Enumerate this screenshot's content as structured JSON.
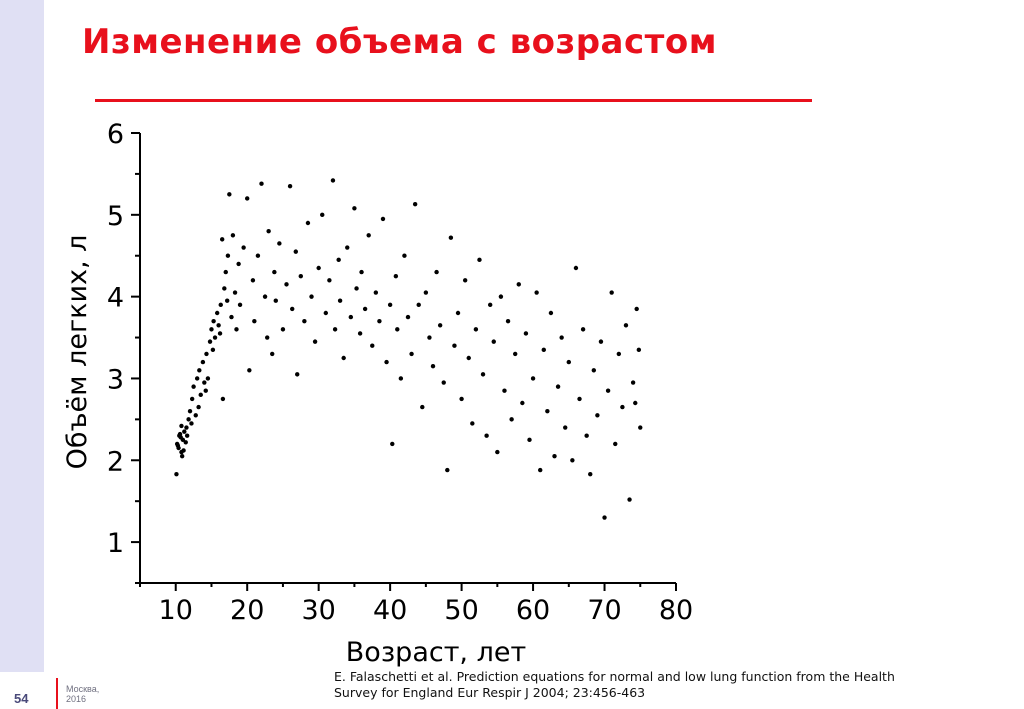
{
  "slide": {
    "title": "Изменение объема с возрастом",
    "citation": "E. Falaschetti et al. Prediction equations for normal and low lung function from the Health\nSurvey for England Eur Respir J 2004; 23:456-463",
    "slide_number": "54",
    "footer_city": "Москва,",
    "footer_year": "2016",
    "accent_color": "#e8101c",
    "sidebar_color": "#e0e0f4"
  },
  "chart_data": {
    "type": "scatter",
    "xlabel": "Возраст, лет",
    "ylabel": "Объём легких, л",
    "xlim": [
      5,
      80
    ],
    "ylim": [
      0.5,
      6
    ],
    "x_ticks": [
      10,
      20,
      30,
      40,
      50,
      60,
      70,
      80
    ],
    "y_ticks": [
      1,
      2,
      3,
      4,
      5,
      6
    ],
    "grid": false,
    "legend": "none",
    "marker_color": "#000000",
    "series": [
      {
        "points": [
          [
            10.2,
            2.2
          ],
          [
            10.5,
            2.3
          ],
          [
            10.8,
            2.1
          ],
          [
            11.0,
            2.25
          ],
          [
            10.4,
            2.15
          ],
          [
            11.2,
            2.35
          ],
          [
            10.9,
            2.05
          ],
          [
            10.1,
            1.83
          ],
          [
            11.5,
            2.4
          ],
          [
            10.7,
            2.28
          ],
          [
            10.3,
            2.18
          ],
          [
            11.4,
            2.22
          ],
          [
            10.6,
            2.32
          ],
          [
            11.1,
            2.12
          ],
          [
            10.8,
            2.42
          ],
          [
            11.8,
            2.5
          ],
          [
            12.0,
            2.6
          ],
          [
            11.6,
            2.3
          ],
          [
            12.3,
            2.75
          ],
          [
            12.5,
            2.9
          ],
          [
            12.8,
            2.55
          ],
          [
            13.0,
            3.0
          ],
          [
            12.2,
            2.45
          ],
          [
            13.3,
            3.1
          ],
          [
            13.5,
            2.8
          ],
          [
            13.8,
            3.2
          ],
          [
            14.0,
            2.95
          ],
          [
            13.2,
            2.65
          ],
          [
            14.3,
            3.3
          ],
          [
            14.5,
            3.0
          ],
          [
            14.8,
            3.45
          ],
          [
            15.0,
            3.6
          ],
          [
            14.2,
            2.85
          ],
          [
            15.3,
            3.7
          ],
          [
            15.5,
            3.5
          ],
          [
            15.8,
            3.8
          ],
          [
            16.0,
            3.65
          ],
          [
            15.2,
            3.35
          ],
          [
            16.3,
            3.9
          ],
          [
            16.5,
            4.7
          ],
          [
            16.8,
            4.1
          ],
          [
            17.0,
            4.3
          ],
          [
            16.2,
            3.55
          ],
          [
            17.3,
            4.5
          ],
          [
            17.5,
            5.25
          ],
          [
            17.8,
            3.75
          ],
          [
            18.0,
            4.75
          ],
          [
            16.6,
            2.75
          ],
          [
            17.2,
            3.95
          ],
          [
            18.3,
            4.05
          ],
          [
            18.5,
            3.6
          ],
          [
            18.8,
            4.4
          ],
          [
            19.0,
            3.9
          ],
          [
            19.5,
            4.6
          ],
          [
            20.0,
            5.2
          ],
          [
            20.3,
            3.1
          ],
          [
            20.8,
            4.2
          ],
          [
            21.0,
            3.7
          ],
          [
            21.5,
            4.5
          ],
          [
            22.0,
            5.38
          ],
          [
            22.5,
            4.0
          ],
          [
            22.8,
            3.5
          ],
          [
            23.0,
            4.8
          ],
          [
            23.5,
            3.3
          ],
          [
            23.8,
            4.3
          ],
          [
            24.0,
            3.95
          ],
          [
            24.5,
            4.65
          ],
          [
            25.0,
            3.6
          ],
          [
            25.5,
            4.15
          ],
          [
            26.0,
            5.35
          ],
          [
            26.3,
            3.85
          ],
          [
            26.8,
            4.55
          ],
          [
            27.0,
            3.05
          ],
          [
            27.5,
            4.25
          ],
          [
            28.0,
            3.7
          ],
          [
            28.5,
            4.9
          ],
          [
            29.0,
            4.0
          ],
          [
            29.5,
            3.45
          ],
          [
            30.0,
            4.35
          ],
          [
            30.5,
            5.0
          ],
          [
            31.0,
            3.8
          ],
          [
            31.5,
            4.2
          ],
          [
            32.0,
            5.42
          ],
          [
            32.3,
            3.6
          ],
          [
            32.8,
            4.45
          ],
          [
            33.0,
            3.95
          ],
          [
            33.5,
            3.25
          ],
          [
            34.0,
            4.6
          ],
          [
            34.5,
            3.75
          ],
          [
            35.0,
            5.08
          ],
          [
            35.3,
            4.1
          ],
          [
            35.8,
            3.55
          ],
          [
            36.0,
            4.3
          ],
          [
            36.5,
            3.85
          ],
          [
            37.0,
            4.75
          ],
          [
            37.5,
            3.4
          ],
          [
            38.0,
            4.05
          ],
          [
            38.5,
            3.7
          ],
          [
            39.0,
            4.95
          ],
          [
            39.5,
            3.2
          ],
          [
            40.0,
            3.9
          ],
          [
            40.3,
            2.2
          ],
          [
            40.8,
            4.25
          ],
          [
            41.0,
            3.6
          ],
          [
            41.5,
            3.0
          ],
          [
            42.0,
            4.5
          ],
          [
            42.5,
            3.75
          ],
          [
            43.0,
            3.3
          ],
          [
            43.5,
            5.13
          ],
          [
            44.0,
            3.9
          ],
          [
            44.5,
            2.65
          ],
          [
            45.0,
            4.05
          ],
          [
            45.5,
            3.5
          ],
          [
            46.0,
            3.15
          ],
          [
            46.5,
            4.3
          ],
          [
            47.0,
            3.65
          ],
          [
            47.5,
            2.95
          ],
          [
            48.0,
            1.88
          ],
          [
            48.5,
            4.72
          ],
          [
            49.0,
            3.4
          ],
          [
            49.5,
            3.8
          ],
          [
            50.0,
            2.75
          ],
          [
            50.5,
            4.2
          ],
          [
            51.0,
            3.25
          ],
          [
            51.5,
            2.45
          ],
          [
            52.0,
            3.6
          ],
          [
            52.5,
            4.45
          ],
          [
            53.0,
            3.05
          ],
          [
            53.5,
            2.3
          ],
          [
            54.0,
            3.9
          ],
          [
            54.5,
            3.45
          ],
          [
            55.0,
            2.1
          ],
          [
            55.5,
            4.0
          ],
          [
            56.0,
            2.85
          ],
          [
            56.5,
            3.7
          ],
          [
            57.0,
            2.5
          ],
          [
            57.5,
            3.3
          ],
          [
            58.0,
            4.15
          ],
          [
            58.5,
            2.7
          ],
          [
            59.0,
            3.55
          ],
          [
            59.5,
            2.25
          ],
          [
            60.0,
            3.0
          ],
          [
            60.5,
            4.05
          ],
          [
            61.0,
            1.88
          ],
          [
            61.5,
            3.35
          ],
          [
            62.0,
            2.6
          ],
          [
            62.5,
            3.8
          ],
          [
            63.0,
            2.05
          ],
          [
            63.5,
            2.9
          ],
          [
            64.0,
            3.5
          ],
          [
            64.5,
            2.4
          ],
          [
            65.0,
            3.2
          ],
          [
            65.5,
            2.0
          ],
          [
            66.0,
            4.35
          ],
          [
            66.5,
            2.75
          ],
          [
            67.0,
            3.6
          ],
          [
            67.5,
            2.3
          ],
          [
            68.0,
            1.83
          ],
          [
            68.5,
            3.1
          ],
          [
            69.0,
            2.55
          ],
          [
            69.5,
            3.45
          ],
          [
            70.0,
            1.3
          ],
          [
            70.5,
            2.85
          ],
          [
            71.0,
            4.05
          ],
          [
            71.5,
            2.2
          ],
          [
            72.0,
            3.3
          ],
          [
            72.5,
            2.65
          ],
          [
            73.0,
            3.65
          ],
          [
            73.5,
            1.52
          ],
          [
            74.0,
            2.95
          ],
          [
            74.5,
            3.85
          ],
          [
            75.0,
            2.4
          ],
          [
            74.8,
            3.35
          ],
          [
            74.3,
            2.7
          ]
        ]
      }
    ]
  }
}
